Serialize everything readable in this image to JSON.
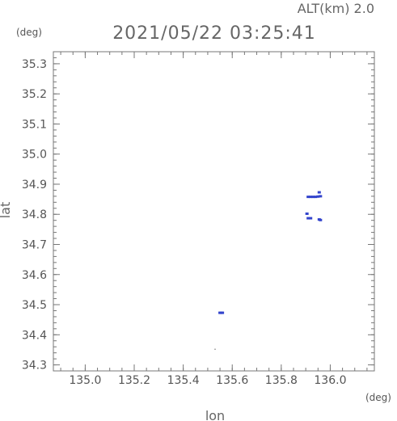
{
  "chart_data": {
    "type": "scatter",
    "title": "2021/05/22 03:25:41",
    "altitude_label": "ALT(km) 2.0",
    "xlabel": "lon",
    "ylabel": "lat",
    "x_unit": "(deg)",
    "y_unit": "(deg)",
    "xlim": [
      134.87,
      136.18
    ],
    "ylim": [
      34.28,
      35.34
    ],
    "x_ticks": [
      135.0,
      135.2,
      135.4,
      135.6,
      135.8,
      136.0
    ],
    "x_tick_labels": [
      "135.0",
      "135.2",
      "135.4",
      "135.6",
      "135.8",
      "136.0"
    ],
    "y_ticks": [
      34.3,
      34.4,
      34.5,
      34.6,
      34.7,
      34.8,
      34.9,
      35.0,
      35.1,
      35.2,
      35.3
    ],
    "y_tick_labels": [
      "34.3",
      "34.4",
      "34.5",
      "34.6",
      "34.7",
      "34.8",
      "34.9",
      "35.0",
      "35.1",
      "35.2",
      "35.3"
    ],
    "grid": false,
    "point_color": "#3344cc",
    "faint_color": "#888888",
    "series": [
      {
        "points": [
          {
            "x": 135.91,
            "y": 34.858
          },
          {
            "x": 135.92,
            "y": 34.858
          },
          {
            "x": 135.93,
            "y": 34.858
          },
          {
            "x": 135.94,
            "y": 34.858
          },
          {
            "x": 135.95,
            "y": 34.859
          },
          {
            "x": 135.96,
            "y": 34.86
          },
          {
            "x": 135.955,
            "y": 34.873
          },
          {
            "x": 135.905,
            "y": 34.802
          },
          {
            "x": 135.91,
            "y": 34.787
          },
          {
            "x": 135.92,
            "y": 34.787
          },
          {
            "x": 135.955,
            "y": 34.783
          },
          {
            "x": 135.96,
            "y": 34.781
          },
          {
            "x": 135.55,
            "y": 34.473
          },
          {
            "x": 135.555,
            "y": 34.473
          },
          {
            "x": 135.56,
            "y": 34.473
          }
        ]
      }
    ],
    "faint_points": [
      {
        "x": 135.53,
        "y": 34.352
      }
    ]
  }
}
